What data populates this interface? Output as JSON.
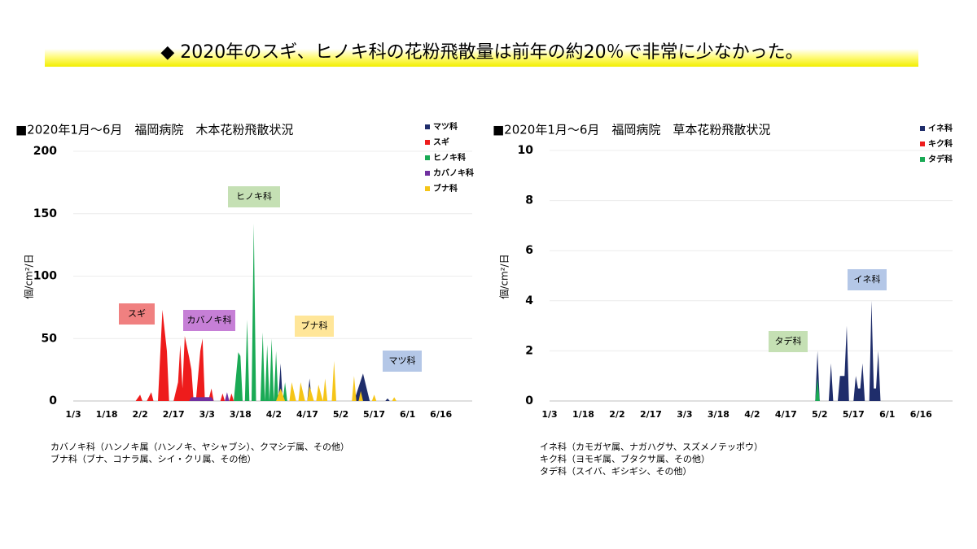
{
  "header": {
    "title": "◆ 2020年のスギ、ヒノキ科の花粉飛散量は前年の約20％で非常に少なかった。"
  },
  "chart_data": [
    {
      "type": "area",
      "title": "■2020年1月～6月　福岡病院　木本花粉飛散状況",
      "y_label": "個/cm²/日",
      "xlim": [
        "1/3",
        "6/30"
      ],
      "xticks": [
        "1/3",
        "1/18",
        "2/2",
        "2/17",
        "3/3",
        "3/18",
        "4/2",
        "4/17",
        "5/2",
        "5/17",
        "6/1",
        "6/16"
      ],
      "ylim": [
        0,
        200
      ],
      "yticks": [
        0,
        50,
        100,
        150,
        200
      ],
      "grid": true,
      "legend": "top-right",
      "series": [
        {
          "name": "マツ科",
          "color": "#1f2d6b",
          "x": [
            "4/4",
            "4/5",
            "4/6",
            "4/17",
            "4/18",
            "4/19",
            "5/8",
            "5/12",
            "5/15",
            "5/22",
            "5/23",
            "5/24"
          ],
          "values": [
            0,
            30,
            0,
            0,
            18,
            0,
            0,
            22,
            0,
            0,
            2,
            0
          ]
        },
        {
          "name": "スギ",
          "color": "#ee1c1c",
          "x": [
            "1/31",
            "2/2",
            "2/3",
            "2/5",
            "2/7",
            "2/8",
            "2/10",
            "2/12",
            "2/14",
            "2/15",
            "2/17",
            "2/19",
            "2/20",
            "2/21",
            "2/22",
            "2/24",
            "2/25",
            "2/26",
            "2/27",
            "2/29",
            "3/1",
            "3/2",
            "3/4",
            "3/5",
            "3/6",
            "3/9",
            "3/10",
            "3/11",
            "3/13",
            "3/14",
            "3/15"
          ],
          "values": [
            0,
            5,
            0,
            0,
            7,
            0,
            0,
            73,
            40,
            0,
            0,
            15,
            45,
            10,
            52,
            35,
            25,
            0,
            0,
            40,
            50,
            3,
            3,
            10,
            0,
            0,
            6,
            0,
            0,
            6,
            0
          ]
        },
        {
          "name": "ヒノキ科",
          "color": "#1aaa55",
          "x": [
            "3/15",
            "3/17",
            "3/18",
            "3/19",
            "3/20",
            "3/21",
            "3/22",
            "3/23",
            "3/24",
            "3/25",
            "3/27",
            "3/28",
            "3/29",
            "3/30",
            "3/31",
            "4/1",
            "4/2",
            "4/3",
            "4/4",
            "4/6",
            "4/7",
            "4/8"
          ],
          "values": [
            0,
            39,
            36,
            0,
            0,
            65,
            0,
            0,
            142,
            0,
            0,
            55,
            0,
            45,
            0,
            50,
            0,
            40,
            0,
            0,
            15,
            0
          ]
        },
        {
          "name": "カバノキ科",
          "color": "#7030a0",
          "x": [
            "2/24",
            "2/25",
            "3/5",
            "3/6",
            "3/11",
            "3/12",
            "3/13"
          ],
          "values": [
            0,
            3,
            3,
            0,
            0,
            7,
            0
          ]
        },
        {
          "name": "ブナ科",
          "color": "#f5c518",
          "x": [
            "4/3",
            "4/5",
            "4/7",
            "4/9",
            "4/10",
            "4/12",
            "4/13",
            "4/14",
            "4/16",
            "4/17",
            "4/18",
            "4/20",
            "4/21",
            "4/22",
            "4/24",
            "4/25",
            "4/26",
            "4/28",
            "4/29",
            "4/30",
            "5/7",
            "5/8",
            "5/9",
            "5/10",
            "5/11",
            "5/12",
            "5/16",
            "5/17",
            "5/18",
            "5/25",
            "5/26",
            "5/27"
          ],
          "values": [
            0,
            10,
            0,
            0,
            15,
            0,
            0,
            15,
            0,
            0,
            12,
            0,
            0,
            13,
            0,
            18,
            0,
            0,
            32,
            0,
            0,
            20,
            0,
            0,
            8,
            0,
            0,
            5,
            0,
            0,
            3,
            0
          ]
        }
      ],
      "annotations": [
        "スギ",
        "カバノキ科",
        "ヒノキ科",
        "ブナ科",
        "マツ科"
      ],
      "notes": [
        "カバノキ科（ハンノキ属（ハンノキ、ヤシャブシ）、クマシデ属、その他）",
        "ブナ科（ブナ、コナラ属、シイ・クリ属、その他）"
      ]
    },
    {
      "type": "area",
      "title": "■2020年1月～6月　福岡病院　草本花粉飛散状況",
      "y_label": "個/cm²/日",
      "xlim": [
        "1/3",
        "6/30"
      ],
      "xticks": [
        "1/3",
        "1/18",
        "2/2",
        "2/17",
        "3/3",
        "3/18",
        "4/2",
        "4/17",
        "5/2",
        "5/17",
        "6/1",
        "6/16"
      ],
      "ylim": [
        0,
        10
      ],
      "yticks": [
        0,
        2,
        4,
        6,
        8,
        10
      ],
      "grid": true,
      "legend": "top-right",
      "series": [
        {
          "name": "イネ科",
          "color": "#1f2d6b",
          "x": [
            "4/30",
            "5/1",
            "5/2",
            "5/6",
            "5/7",
            "5/8",
            "5/10",
            "5/11",
            "5/12",
            "5/13",
            "5/14",
            "5/15",
            "5/17",
            "5/18",
            "5/19",
            "5/20",
            "5/21",
            "5/22",
            "5/24",
            "5/25",
            "5/26",
            "5/27",
            "5/28",
            "5/29"
          ],
          "values": [
            0,
            2.0,
            0,
            0,
            1.5,
            0,
            0,
            1.0,
            1.0,
            1.0,
            3.0,
            0,
            0,
            1.0,
            0.5,
            0.5,
            1.5,
            0,
            0,
            4.0,
            0.5,
            0.5,
            2.0,
            0
          ]
        },
        {
          "name": "キク科",
          "color": "#ee1c1c",
          "x": [],
          "values": []
        },
        {
          "name": "タデ科",
          "color": "#1aaa55",
          "x": [
            "4/30",
            "5/1",
            "5/2"
          ],
          "values": [
            0,
            0.9,
            0
          ]
        }
      ],
      "annotations": [
        "タデ科",
        "イネ科"
      ],
      "notes": [
        "イネ科（カモガヤ属、ナガハグサ、スズメノテッポウ）",
        "キク科（ヨモギ属、ブタクサ属、その他）",
        "タデ科（スイバ、ギシギシ、その他）"
      ]
    }
  ]
}
